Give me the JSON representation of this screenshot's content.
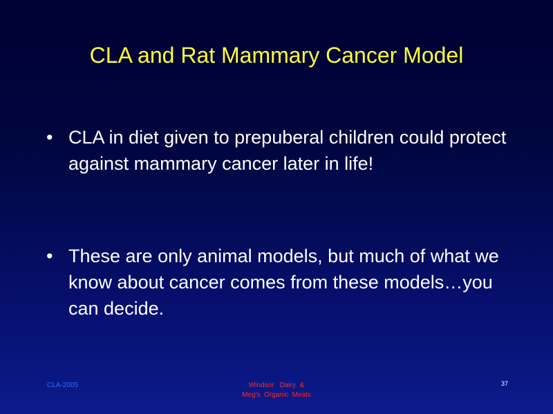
{
  "slide": {
    "title": "CLA and Rat Mammary Cancer Model",
    "bullets": [
      {
        "marker": "•",
        "text": "CLA in diet given to prepuberal children could protect against mammary cancer later in life!"
      },
      {
        "marker": "•",
        "text": "These are only animal models, but much of what we know about cancer comes from these models…you can decide."
      }
    ]
  },
  "footer": {
    "left": "CLA-2005",
    "center_line1": "Windsor   Dairy  &",
    "center_line2": "Meg's  Organic  Meats",
    "page_number": "37"
  },
  "colors": {
    "title": "#ffff33",
    "body_text": "#ffffff",
    "footer_left": "#3366ff",
    "footer_center": "#ff2a2a",
    "background_top": "#000033",
    "background_bottom": "#0c1b8c"
  }
}
